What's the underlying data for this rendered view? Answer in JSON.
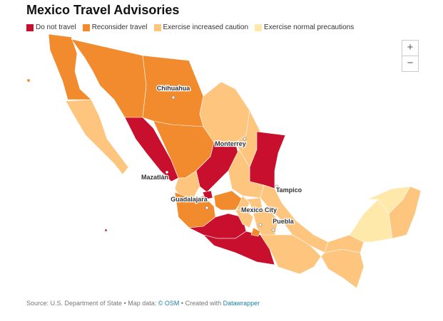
{
  "header": {
    "title": "Mexico Travel Advisories"
  },
  "legend": [
    {
      "label": "Do not travel",
      "color": "#c8102e"
    },
    {
      "label": "Reconsider travel",
      "color": "#f28a2e"
    },
    {
      "label": "Exercise increased caution",
      "color": "#fdc57e"
    },
    {
      "label": "Exercise normal precautions",
      "color": "#fee9ab"
    }
  ],
  "zoom": {
    "in": "+",
    "out": "−"
  },
  "cities": [
    "Chihuahua",
    "Monterrey",
    "Mazatlán",
    "Tampico",
    "Guadalajara",
    "Mexico City",
    "Puebla"
  ],
  "footer": {
    "source": "Source: U.S. Department of State • Map data:",
    "osm": "© OSM",
    "created": "• Created with",
    "credit": "Datawrapper"
  }
}
